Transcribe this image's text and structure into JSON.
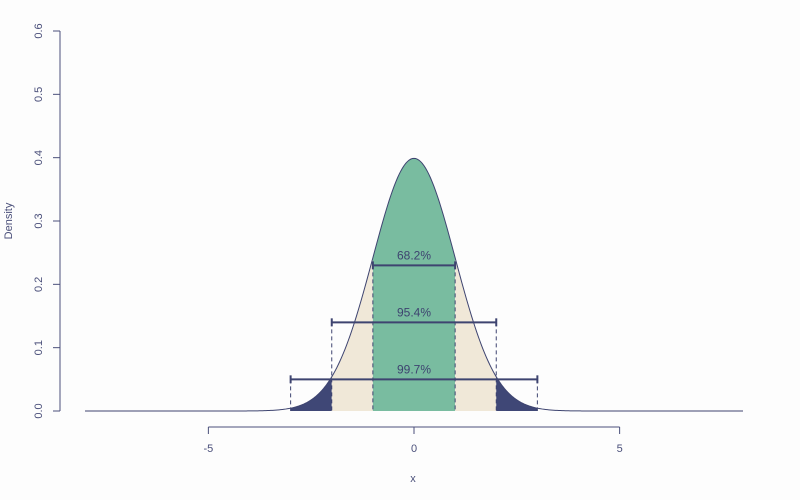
{
  "chart_data": {
    "type": "area",
    "title": "",
    "xlabel": "x",
    "ylabel": "Density",
    "xlim": [
      -8,
      8
    ],
    "ylim": [
      0,
      0.6
    ],
    "grid": false,
    "legend": "none",
    "x_ticks": [
      -5,
      0,
      5
    ],
    "y_ticks": [
      0.0,
      0.1,
      0.2,
      0.3,
      0.4,
      0.5,
      0.6
    ],
    "y_tick_labels": [
      "0.0",
      "0.1",
      "0.2",
      "0.3",
      "0.4",
      "0.5",
      "0.6"
    ],
    "x_tick_labels": [
      "-5",
      "0",
      "5"
    ],
    "distribution": {
      "name": "standard-normal",
      "mean": 0,
      "sd": 1
    },
    "regions": [
      {
        "from": -3,
        "to": -2,
        "color": "#3f4776"
      },
      {
        "from": -2,
        "to": -1,
        "color": "#f0e8d8"
      },
      {
        "from": -1,
        "to": 1,
        "color": "#79bca0"
      },
      {
        "from": 1,
        "to": 2,
        "color": "#f0e8d8"
      },
      {
        "from": 2,
        "to": 3,
        "color": "#3f4776"
      }
    ],
    "intervals": [
      {
        "from": -1,
        "to": 1,
        "y": 0.23,
        "label": "68.2%"
      },
      {
        "from": -2,
        "to": 2,
        "y": 0.14,
        "label": "95.4%"
      },
      {
        "from": -3,
        "to": 3,
        "y": 0.05,
        "label": "99.7%"
      }
    ],
    "colors": {
      "axis": "#4a4f7a",
      "curve": "#3e4470",
      "interval": "#3e4470"
    }
  }
}
